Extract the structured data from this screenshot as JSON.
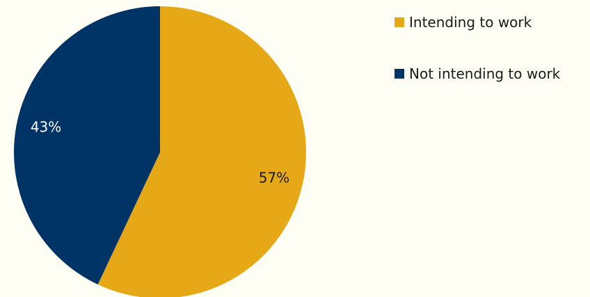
{
  "chart_data": {
    "type": "pie",
    "title": "",
    "slices": [
      {
        "name": "Intending to work",
        "value": 57,
        "label": "57%",
        "color": "#e6a817",
        "label_color": "#1a1a1a"
      },
      {
        "name": "Not intending to work",
        "value": 43,
        "label": "43%",
        "color": "#003366",
        "label_color": "#ffffff"
      }
    ],
    "start_angle_deg": 0,
    "direction": "clockwise",
    "legend_position": "top-right"
  }
}
